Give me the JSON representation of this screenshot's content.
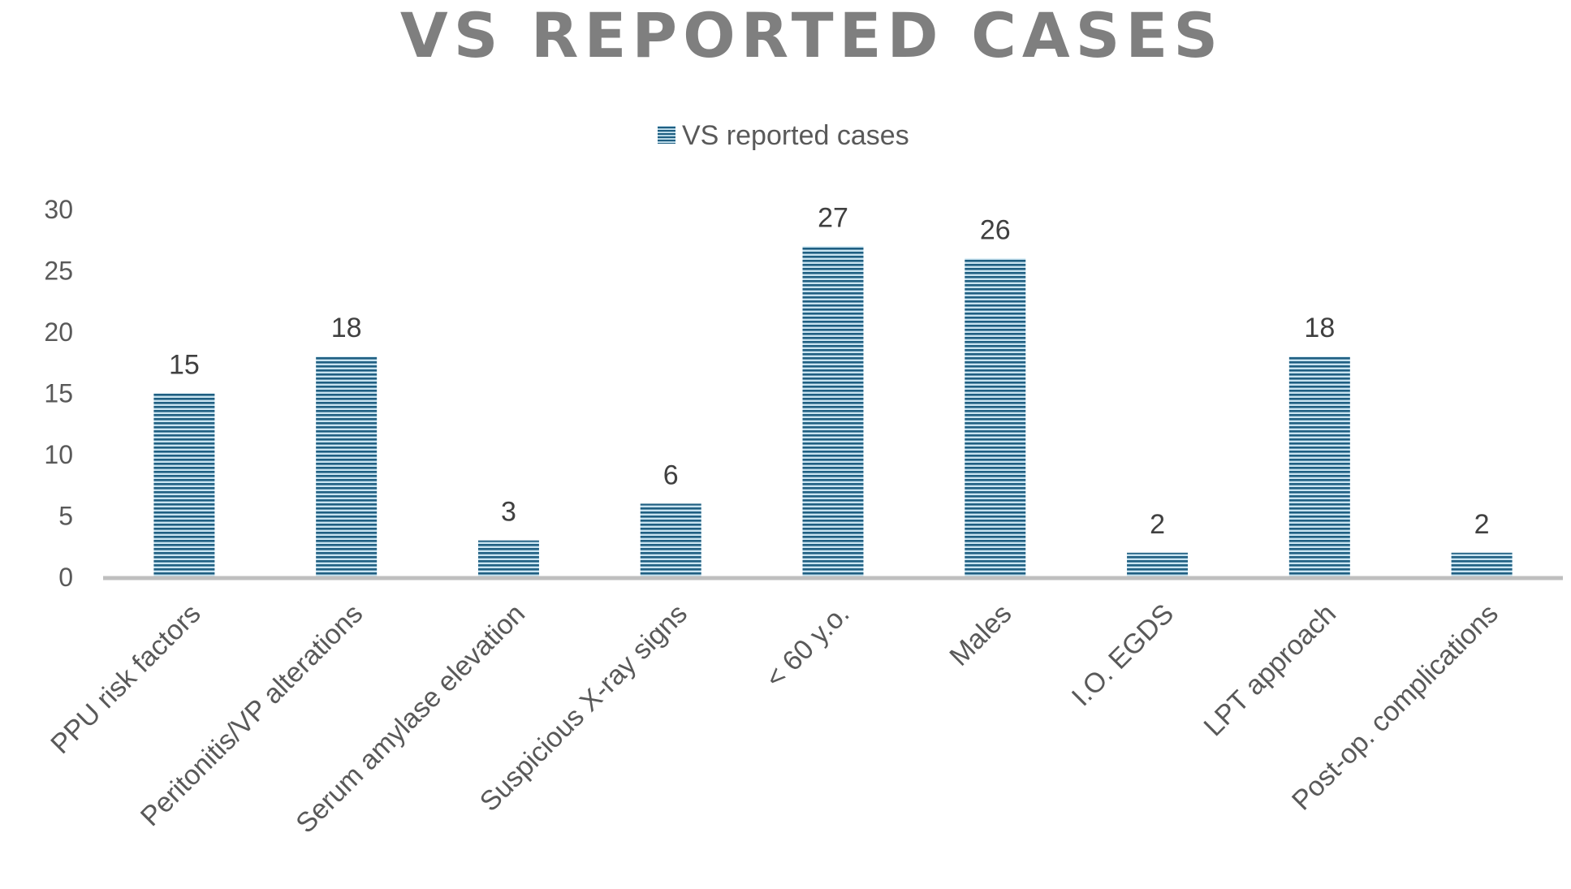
{
  "chart_data": {
    "type": "bar",
    "title": "VS REPORTED CASES",
    "legend": {
      "position": "top",
      "label": "VS reported cases"
    },
    "categories": [
      "PPU risk factors",
      "Peritonitis/VP alterations",
      "Serum amylase elevation",
      "Suspicious X-ray signs",
      "< 60 y.o.",
      "Males",
      "I.O. EGDS",
      "LPT approach",
      "Post-op. complications"
    ],
    "series": [
      {
        "name": "VS reported cases",
        "values": [
          15,
          18,
          3,
          6,
          27,
          26,
          2,
          18,
          2
        ]
      }
    ],
    "ylim": [
      0,
      30
    ],
    "yticks": [
      0,
      5,
      10,
      15,
      20,
      25,
      30
    ],
    "xlabel": "",
    "ylabel": "",
    "grid": false,
    "colors": {
      "bar_dark": "#1f5f82",
      "bar_light": "#c9e4f1",
      "axis": "#bfbfbf",
      "title": "#7f7f7f"
    }
  }
}
